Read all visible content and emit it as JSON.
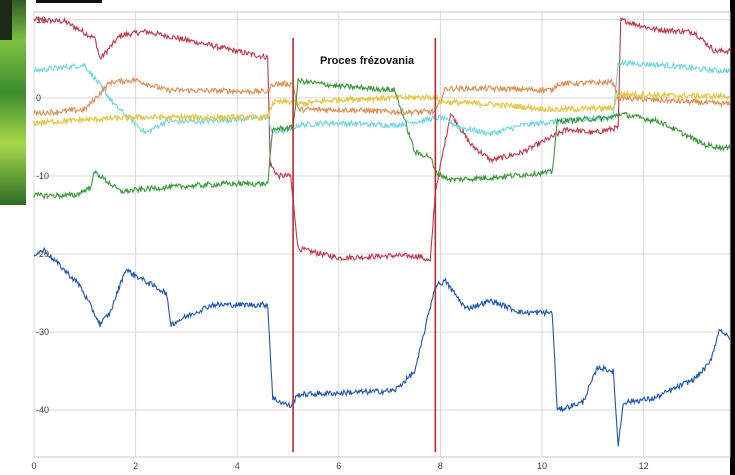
{
  "chart_data": {
    "type": "line",
    "title": "",
    "xlabel": "",
    "ylabel": "",
    "xlim": [
      0,
      13.7
    ],
    "ylim": [
      -46,
      11
    ],
    "x_ticks": [
      0,
      2,
      4,
      6,
      8,
      10,
      12
    ],
    "y_ticks": [
      10,
      0,
      -10,
      -20,
      -30,
      -40
    ],
    "grid": true,
    "annotation": "Proces frézovania",
    "vlines": [
      5.1,
      7.9
    ],
    "vline_color": "#c0262b",
    "series": [
      {
        "color": "#c0394b",
        "x": [
          0,
          0.6,
          1.2,
          1.3,
          1.7,
          2.2,
          3.3,
          4.1,
          4.6,
          4.65,
          4.8,
          5.05,
          5.2,
          6,
          7.1,
          7.6,
          7.8,
          7.9,
          8.2,
          8.6,
          9.0,
          9.6,
          10.2,
          10.5,
          11.0,
          11.5,
          11.55,
          12.2,
          13.0,
          13.4,
          13.7
        ],
        "y": [
          10,
          9.8,
          7.6,
          5,
          8,
          8.5,
          7,
          5.8,
          5.2,
          -8.5,
          -10,
          -10,
          -19.3,
          -20.5,
          -20.2,
          -20.3,
          -21,
          -12,
          -2,
          -6,
          -8,
          -7,
          -5,
          -4,
          -4.5,
          -3.8,
          10,
          8.8,
          8.4,
          6,
          6
        ]
      },
      {
        "color": "#6fd6e2",
        "x": [
          0,
          1.0,
          1.6,
          2.2,
          2.6,
          3.3,
          4.6,
          4.7,
          5.05,
          5.2,
          5.8,
          7.1,
          8.0,
          8.4,
          9.0,
          9.6,
          10.6,
          11.4,
          11.5,
          12.4,
          13.4,
          13.7
        ],
        "y": [
          3.5,
          4.2,
          -1,
          -4.5,
          -3,
          -3,
          -2.5,
          -4.5,
          -4,
          -3.5,
          -3.2,
          -3.5,
          -2.5,
          -3.8,
          -4.6,
          -3.5,
          -2.8,
          -2.5,
          4.5,
          4.2,
          3.5,
          3.5
        ]
      },
      {
        "color": "#e08d4f",
        "x": [
          0,
          1.0,
          1.5,
          2.0,
          2.6,
          4.6,
          4.7,
          5.1,
          5.2,
          6,
          7.1,
          7.9,
          8.1,
          8.9,
          10.2,
          10.3,
          11.4,
          11.5,
          13.7
        ],
        "y": [
          -2,
          -1.5,
          2,
          2.3,
          1,
          0.8,
          1.8,
          1.8,
          -1.5,
          -1.5,
          -1.8,
          -1.8,
          1.2,
          1.2,
          1.0,
          1.8,
          2,
          0,
          -0.8
        ]
      },
      {
        "color": "#e6c84a",
        "x": [
          0,
          1.0,
          2.0,
          3.0,
          4.6,
          4.7,
          5.1,
          5.2,
          6,
          7.0,
          7.9,
          8.0,
          9.0,
          10.2,
          11.4,
          11.5,
          12.5,
          13.7
        ],
        "y": [
          -3.2,
          -2.8,
          -2.5,
          -2.5,
          -2.5,
          -0.6,
          -0.5,
          -0.8,
          -0.2,
          0,
          0.1,
          -0.5,
          -0.8,
          -1.5,
          -1.3,
          0.5,
          0.3,
          0.2
        ]
      },
      {
        "color": "#3a9a3a",
        "x": [
          0,
          0.8,
          1.1,
          1.2,
          1.7,
          2.5,
          3.8,
          4.6,
          4.7,
          5.1,
          5.2,
          6.0,
          7.1,
          7.5,
          7.8,
          7.9,
          8.2,
          9.0,
          10.2,
          10.3,
          11.4,
          11.5,
          12.3,
          13.2,
          13.7
        ],
        "y": [
          -12.5,
          -12.5,
          -11.5,
          -9.5,
          -12,
          -11.5,
          -11,
          -11,
          -4,
          -3.8,
          2.2,
          1.5,
          1,
          -7,
          -7.5,
          -9.5,
          -10.5,
          -10.2,
          -9.5,
          -3,
          -2.5,
          -2,
          -3,
          -6,
          -6.5
        ]
      },
      {
        "color": "#1f56b0",
        "x": [
          0,
          0.2,
          0.9,
          1.3,
          1.5,
          1.8,
          2.6,
          2.7,
          3.0,
          3.5,
          4.6,
          4.7,
          5.05,
          5.2,
          6.0,
          7.1,
          7.5,
          7.9,
          8.1,
          8.5,
          9.0,
          9.6,
          10.2,
          10.3,
          10.8,
          11.1,
          11.4,
          11.5,
          11.6,
          12.2,
          13.0,
          13.3,
          13.5,
          13.7
        ],
        "y": [
          -20,
          -19.5,
          -24,
          -29,
          -27.5,
          -22,
          -25,
          -29,
          -28,
          -26.5,
          -26.5,
          -38.5,
          -39.5,
          -38,
          -37.8,
          -37.5,
          -35,
          -24,
          -23.5,
          -27,
          -26,
          -27.5,
          -27.5,
          -40,
          -39,
          -34.5,
          -35,
          -44.5,
          -39,
          -38.5,
          -36,
          -34,
          -29.5,
          -31
        ]
      }
    ]
  }
}
